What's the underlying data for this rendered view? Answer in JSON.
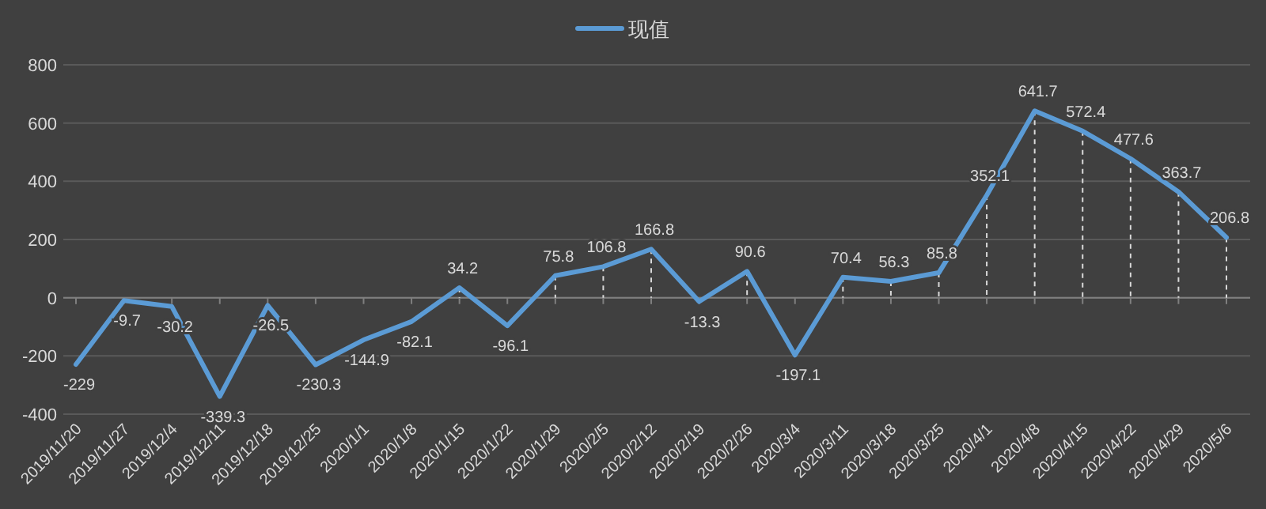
{
  "chart_data": {
    "type": "line",
    "categories": [
      "2019/11/20",
      "2019/11/27",
      "2019/12/4",
      "2019/12/11",
      "2019/12/18",
      "2019/12/25",
      "2020/1/1",
      "2020/1/8",
      "2020/1/15",
      "2020/1/22",
      "2020/1/29",
      "2020/2/5",
      "2020/2/12",
      "2020/2/19",
      "2020/2/26",
      "2020/3/4",
      "2020/3/11",
      "2020/3/18",
      "2020/3/25",
      "2020/4/1",
      "2020/4/8",
      "2020/4/15",
      "2020/4/22",
      "2020/4/29",
      "2020/5/6"
    ],
    "series": [
      {
        "name": "现值",
        "color": "#5b9bd5",
        "values": [
          -229,
          -9.7,
          -30.2,
          -339.3,
          -26.5,
          -230.3,
          -144.9,
          -82.1,
          34.2,
          -96.1,
          75.8,
          106.8,
          166.8,
          -13.3,
          90.6,
          -197.1,
          70.4,
          56.3,
          85.8,
          352.1,
          641.7,
          572.4,
          477.6,
          363.7,
          206.8
        ]
      }
    ],
    "ylim": [
      -400,
      800
    ],
    "yticks": [
      -400,
      -200,
      0,
      200,
      400,
      600,
      800
    ],
    "grid": "y",
    "legend": "top",
    "data_labels": true,
    "marker": "none",
    "line_style": "solid"
  }
}
